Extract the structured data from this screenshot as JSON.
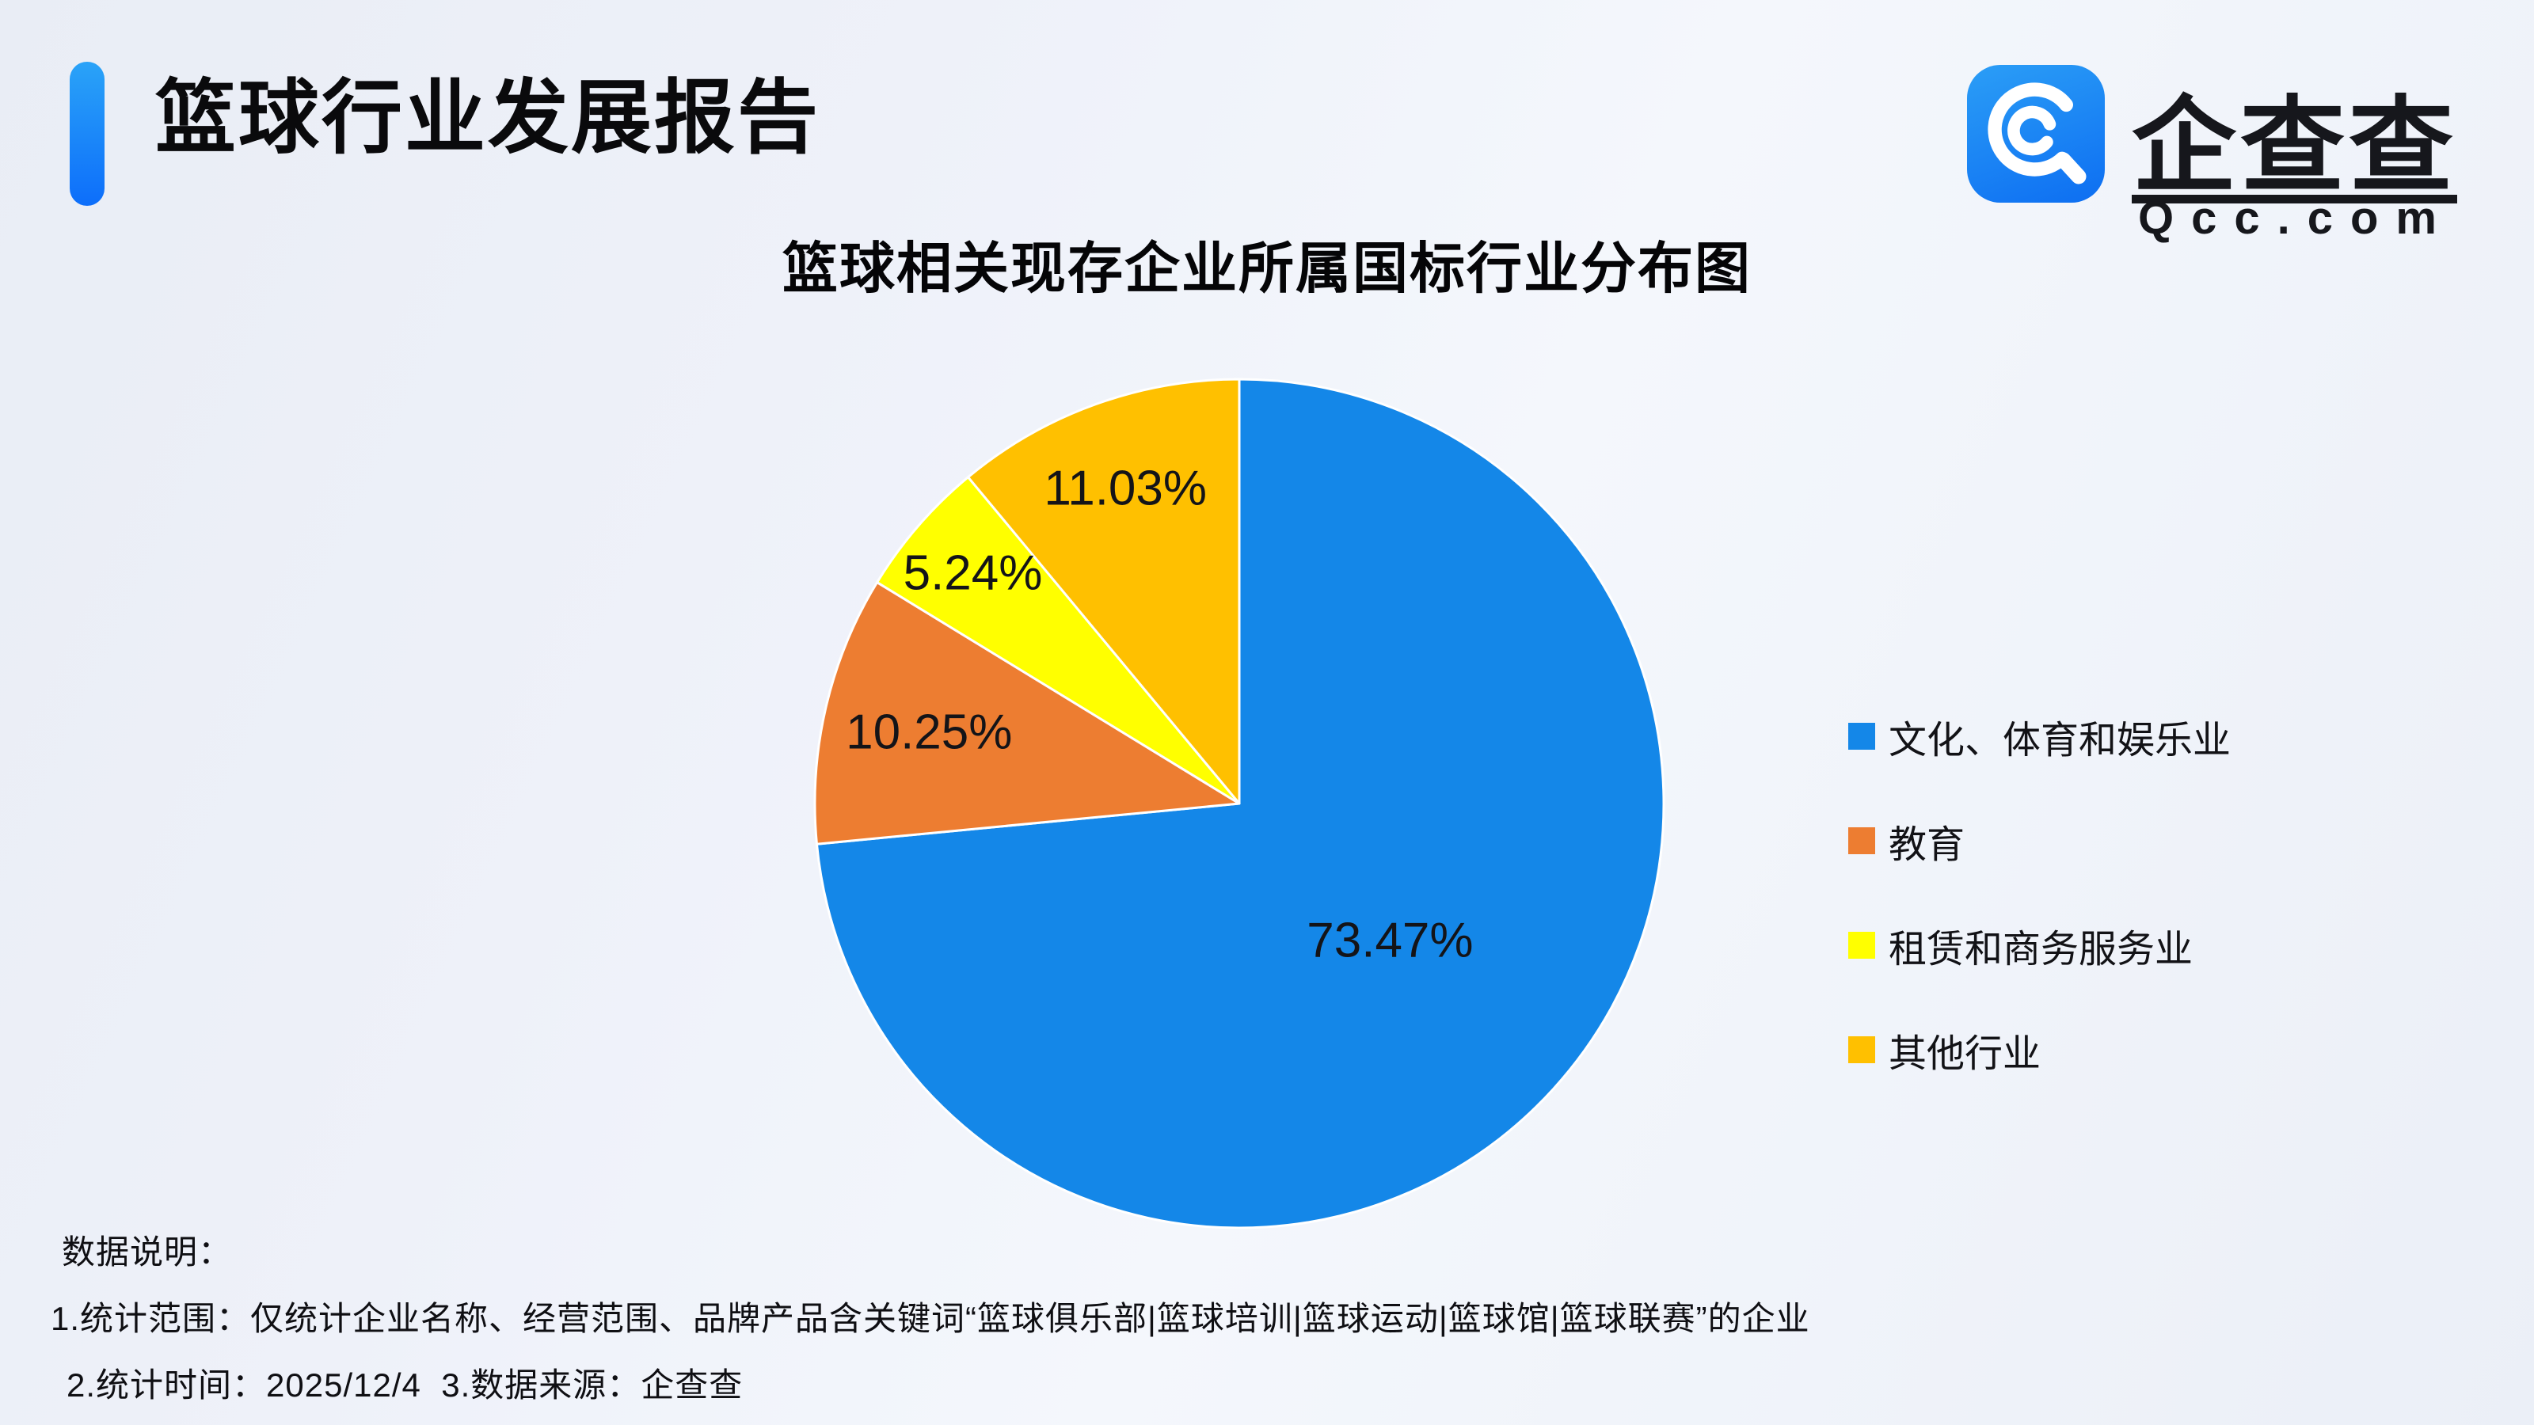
{
  "header": {
    "title": "篮球行业发展报告",
    "accent_color": "#0d6efa"
  },
  "logo": {
    "brand_cn": "企查查",
    "brand_en": "Qcc.com",
    "icon_name": "qcc-magnifier-icon",
    "icon_color": "#1586e8"
  },
  "chart_data": {
    "type": "pie",
    "title": "篮球相关现存企业所属国标行业分布图",
    "labels": [
      "文化、体育和娱乐业",
      "教育",
      "租赁和商务服务业",
      "其他行业"
    ],
    "values": [
      73.47,
      10.25,
      5.24,
      11.03
    ],
    "value_labels": [
      "73.47%",
      "10.25%",
      "5.24%",
      "11.03%"
    ],
    "colors": [
      "#1487e8",
      "#ed7d31",
      "#ffff00",
      "#ffc000"
    ],
    "start_angle_deg": 0,
    "direction": "clockwise",
    "legend_position": "right",
    "slice_border_color": "#ffffff",
    "label_radius": [
      0.48,
      0.75,
      0.83,
      0.79
    ]
  },
  "footer": {
    "lines": [
      "数据说明：",
      "1.统计范围：仅统计企业名称、经营范围、品牌产品含关键词“篮球俱乐部|篮球培训|篮球运动|篮球馆|篮球联赛”的企业",
      "2.统计时间：2025/12/4  3.数据来源：企查查"
    ]
  }
}
